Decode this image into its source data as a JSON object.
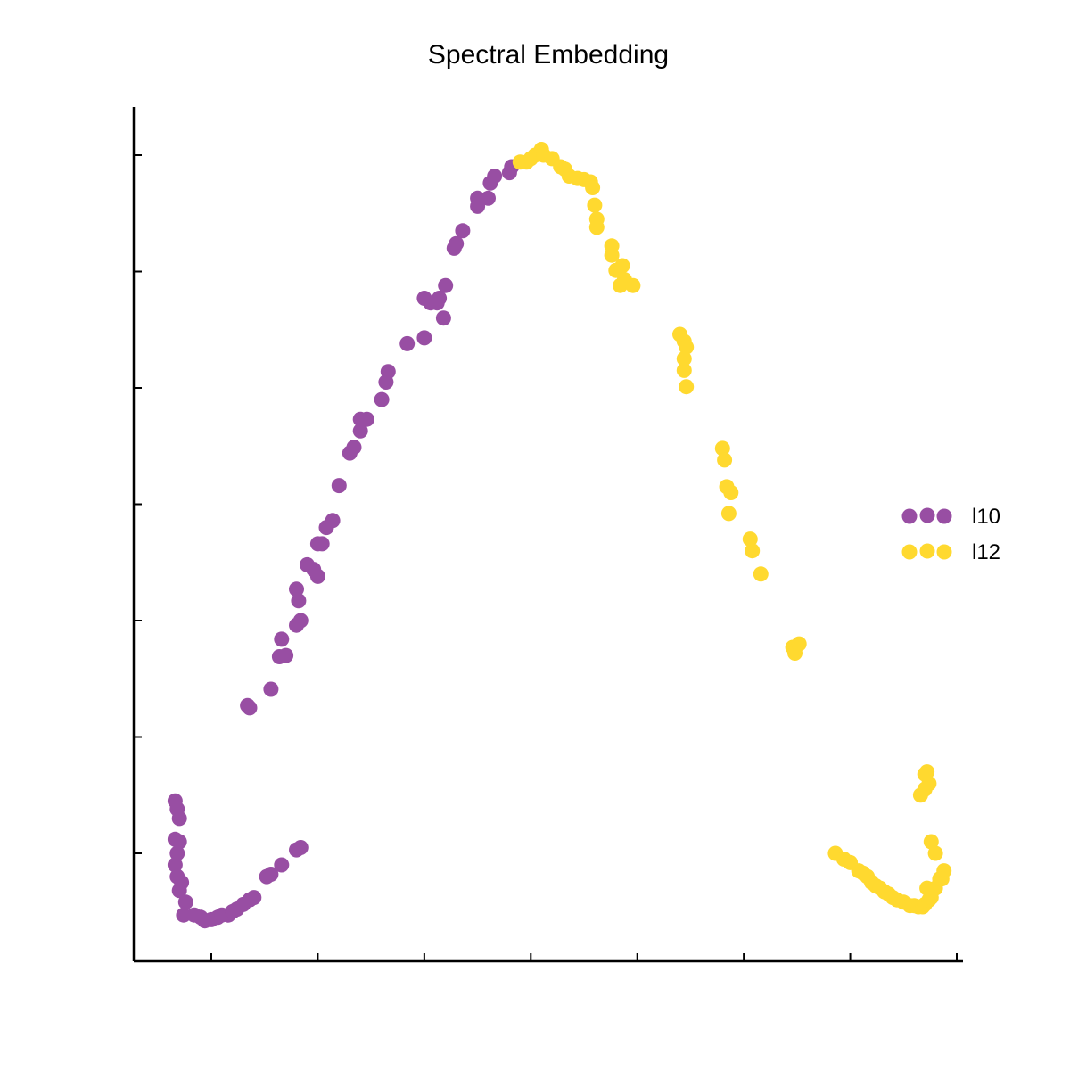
{
  "chart_data": {
    "type": "scatter",
    "title": "Spectral Embedding",
    "xlabel": "",
    "ylabel": "",
    "xlim": [
      -0.18,
      3.7
    ],
    "ylim": [
      -0.45,
      6.5
    ],
    "xticks": [
      0,
      0.5,
      1,
      1.5,
      2,
      2.5,
      3,
      3.5
    ],
    "yticks": [
      0,
      1,
      2,
      3,
      4,
      5,
      6
    ],
    "show_tick_labels": false,
    "grid": false,
    "legend_position": "right",
    "series": [
      {
        "name": "l10",
        "color": "#984ea3",
        "points": [
          [
            -0.17,
            0.45
          ],
          [
            -0.16,
            0.38
          ],
          [
            -0.15,
            0.3
          ],
          [
            -0.17,
            0.12
          ],
          [
            -0.15,
            0.1
          ],
          [
            -0.16,
            0.0
          ],
          [
            -0.17,
            -0.1
          ],
          [
            -0.16,
            -0.2
          ],
          [
            -0.14,
            -0.25
          ],
          [
            -0.15,
            -0.32
          ],
          [
            -0.12,
            -0.42
          ],
          [
            -0.13,
            -0.53
          ],
          [
            -0.08,
            -0.53
          ],
          [
            -0.05,
            -0.55
          ],
          [
            -0.03,
            -0.58
          ],
          [
            0.0,
            -0.57
          ],
          [
            0.03,
            -0.55
          ],
          [
            0.05,
            -0.53
          ],
          [
            0.08,
            -0.53
          ],
          [
            0.1,
            -0.5
          ],
          [
            0.12,
            -0.48
          ],
          [
            0.15,
            -0.44
          ],
          [
            0.18,
            -0.4
          ],
          [
            0.2,
            -0.38
          ],
          [
            0.26,
            -0.2
          ],
          [
            0.28,
            -0.18
          ],
          [
            0.33,
            -0.1
          ],
          [
            0.4,
            0.03
          ],
          [
            0.42,
            0.05
          ],
          [
            0.17,
            1.27
          ],
          [
            0.18,
            1.25
          ],
          [
            0.28,
            1.41
          ],
          [
            0.32,
            1.69
          ],
          [
            0.33,
            1.84
          ],
          [
            0.35,
            1.7
          ],
          [
            0.4,
            1.96
          ],
          [
            0.42,
            2.0
          ],
          [
            0.4,
            2.27
          ],
          [
            0.41,
            2.17
          ],
          [
            0.45,
            2.48
          ],
          [
            0.48,
            2.44
          ],
          [
            0.5,
            2.38
          ],
          [
            0.5,
            2.66
          ],
          [
            0.52,
            2.66
          ],
          [
            0.54,
            2.8
          ],
          [
            0.57,
            2.86
          ],
          [
            0.6,
            3.16
          ],
          [
            0.65,
            3.44
          ],
          [
            0.67,
            3.49
          ],
          [
            0.7,
            3.63
          ],
          [
            0.7,
            3.73
          ],
          [
            0.73,
            3.73
          ],
          [
            0.8,
            3.9
          ],
          [
            0.82,
            4.05
          ],
          [
            0.83,
            4.14
          ],
          [
            0.92,
            4.38
          ],
          [
            1.0,
            4.43
          ],
          [
            1.0,
            4.77
          ],
          [
            1.03,
            4.73
          ],
          [
            1.06,
            4.73
          ],
          [
            1.07,
            4.77
          ],
          [
            1.09,
            4.6
          ],
          [
            1.1,
            4.88
          ],
          [
            1.14,
            5.2
          ],
          [
            1.15,
            5.24
          ],
          [
            1.18,
            5.35
          ],
          [
            1.25,
            5.56
          ],
          [
            1.25,
            5.63
          ],
          [
            1.3,
            5.63
          ],
          [
            1.31,
            5.76
          ],
          [
            1.33,
            5.82
          ],
          [
            1.4,
            5.85
          ],
          [
            1.41,
            5.9
          ]
        ]
      },
      {
        "name": "l12",
        "color": "#ffd92f",
        "points": [
          [
            1.45,
            5.94
          ],
          [
            1.48,
            5.94
          ],
          [
            1.5,
            5.97
          ],
          [
            1.52,
            6.0
          ],
          [
            1.55,
            6.05
          ],
          [
            1.56,
            6.0
          ],
          [
            1.6,
            5.97
          ],
          [
            1.64,
            5.9
          ],
          [
            1.66,
            5.88
          ],
          [
            1.68,
            5.82
          ],
          [
            1.72,
            5.8
          ],
          [
            1.75,
            5.79
          ],
          [
            1.78,
            5.77
          ],
          [
            1.79,
            5.72
          ],
          [
            1.8,
            5.57
          ],
          [
            1.81,
            5.45
          ],
          [
            1.81,
            5.38
          ],
          [
            1.88,
            5.22
          ],
          [
            1.88,
            5.14
          ],
          [
            1.9,
            5.01
          ],
          [
            1.93,
            5.05
          ],
          [
            1.94,
            4.93
          ],
          [
            1.92,
            4.88
          ],
          [
            1.98,
            4.88
          ],
          [
            2.2,
            4.46
          ],
          [
            2.22,
            4.4
          ],
          [
            2.23,
            4.35
          ],
          [
            2.22,
            4.25
          ],
          [
            2.22,
            4.15
          ],
          [
            2.23,
            4.01
          ],
          [
            2.4,
            3.48
          ],
          [
            2.41,
            3.38
          ],
          [
            2.42,
            3.15
          ],
          [
            2.44,
            3.1
          ],
          [
            2.43,
            2.92
          ],
          [
            2.53,
            2.7
          ],
          [
            2.54,
            2.6
          ],
          [
            2.58,
            2.4
          ],
          [
            2.73,
            1.77
          ],
          [
            2.74,
            1.72
          ],
          [
            2.76,
            1.8
          ],
          [
            2.93,
            0.0
          ],
          [
            2.97,
            -0.05
          ],
          [
            3.0,
            -0.08
          ],
          [
            3.04,
            -0.15
          ],
          [
            3.06,
            -0.17
          ],
          [
            3.08,
            -0.2
          ],
          [
            3.1,
            -0.25
          ],
          [
            3.12,
            -0.28
          ],
          [
            3.14,
            -0.3
          ],
          [
            3.16,
            -0.33
          ],
          [
            3.18,
            -0.35
          ],
          [
            3.2,
            -0.38
          ],
          [
            3.22,
            -0.4
          ],
          [
            3.25,
            -0.42
          ],
          [
            3.28,
            -0.45
          ],
          [
            3.3,
            -0.45
          ],
          [
            3.32,
            -0.46
          ],
          [
            3.34,
            -0.46
          ],
          [
            3.35,
            -0.44
          ],
          [
            3.37,
            -0.4
          ],
          [
            3.38,
            -0.38
          ],
          [
            3.4,
            -0.3
          ],
          [
            3.42,
            -0.22
          ],
          [
            3.44,
            -0.15
          ],
          [
            3.43,
            -0.22
          ],
          [
            3.36,
            -0.3
          ],
          [
            3.38,
            0.1
          ],
          [
            3.4,
            0.0
          ],
          [
            3.33,
            0.5
          ],
          [
            3.35,
            0.55
          ],
          [
            3.37,
            0.6
          ],
          [
            3.36,
            0.7
          ],
          [
            3.35,
            0.68
          ]
        ]
      }
    ]
  }
}
